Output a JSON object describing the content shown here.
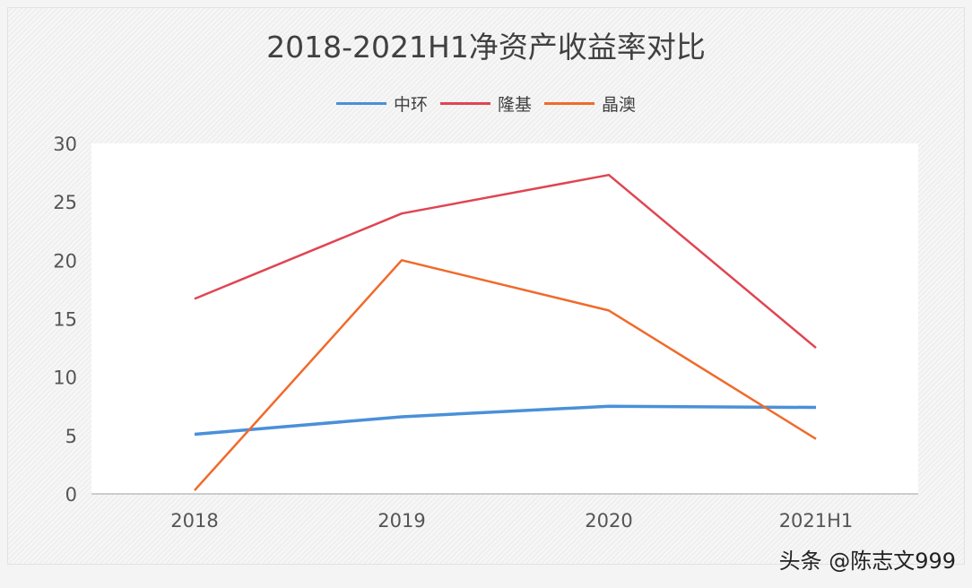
{
  "chart_data": {
    "type": "line",
    "title": "2018-2021H1净资产收益率对比",
    "categories": [
      "2018",
      "2019",
      "2020",
      "2021H1"
    ],
    "series": [
      {
        "name": "中环",
        "color": "#4a90d9",
        "values": [
          5.1,
          6.6,
          7.5,
          7.4
        ]
      },
      {
        "name": "隆基",
        "color": "#e04552",
        "values": [
          16.7,
          24.0,
          27.3,
          12.5
        ]
      },
      {
        "name": "晶澳",
        "color": "#f06a2a",
        "values": [
          0.3,
          20.0,
          15.7,
          4.7
        ]
      }
    ],
    "ylim": [
      0,
      30
    ],
    "yticks": [
      "0",
      "5",
      "10",
      "15",
      "20",
      "25",
      "30"
    ],
    "grid": false,
    "legend_position": "top"
  },
  "watermark": "头条 @陈志文999"
}
